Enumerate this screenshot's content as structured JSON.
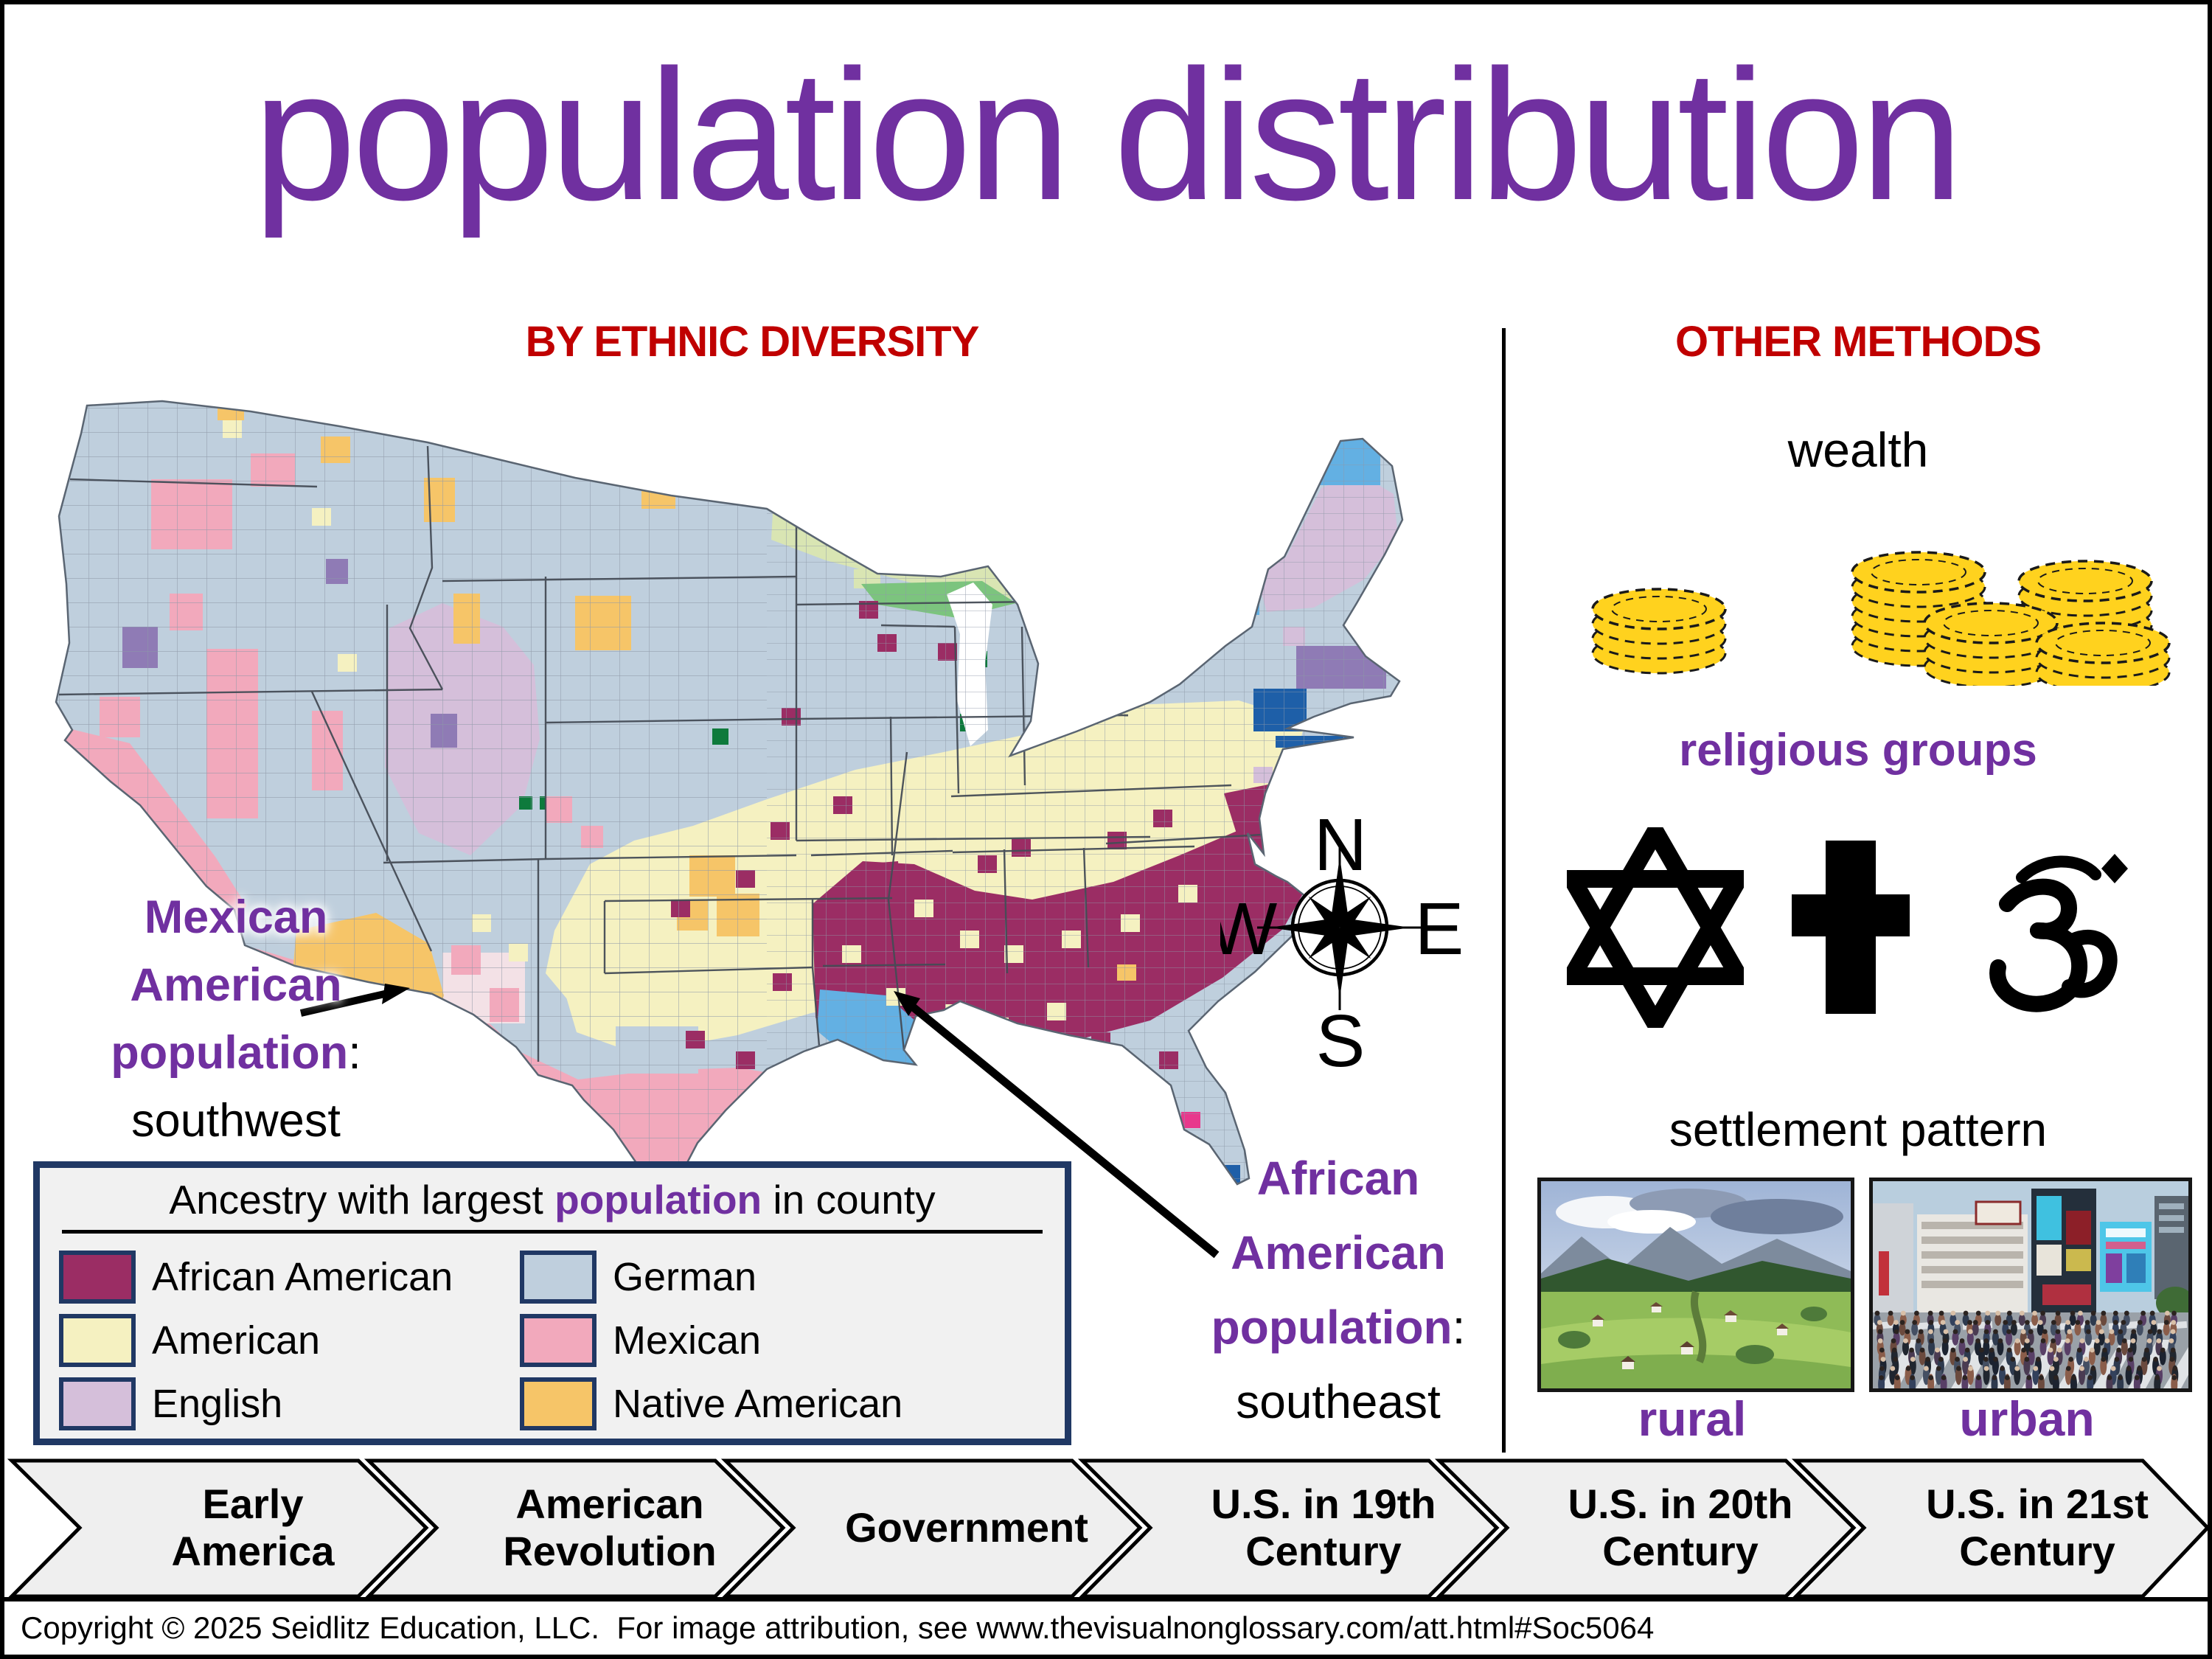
{
  "title": "population distribution",
  "sections": {
    "map": {
      "header": "BY ETHNIC DIVERSITY",
      "legend": {
        "title": {
          "prefix": "Ancestry with largest ",
          "highlight": "population",
          "suffix": " in county"
        },
        "items": [
          {
            "label": "African American",
            "color": "#9B2D64"
          },
          {
            "label": "American",
            "color": "#F5F1C1"
          },
          {
            "label": "English",
            "color": "#D5BFDA"
          },
          {
            "label": "German",
            "color": "#BFCFDD"
          },
          {
            "label": "Mexican",
            "color": "#F2A9BC"
          },
          {
            "label": "Native American",
            "color": "#F6C568"
          }
        ]
      },
      "annotations": {
        "mexican": {
          "bold1": "Mexican",
          "bold2": "American",
          "bold3": "population",
          "colon": ":",
          "normal": "southwest"
        },
        "african": {
          "bold1": "African",
          "bold2": "American",
          "bold3": "population",
          "colon": ":",
          "normal": "southeast"
        }
      },
      "compass": {
        "n": "N",
        "s": "S",
        "e": "E",
        "w": "W"
      }
    },
    "other": {
      "header": "OTHER METHODS",
      "wealth": {
        "label": "wealth",
        "icon": "gold-coin-stacks"
      },
      "religion": {
        "label": "religious groups",
        "symbols": [
          "star-of-david-icon",
          "christian-cross-icon",
          "om-icon"
        ]
      },
      "settlement": {
        "label": "settlement pattern",
        "rural_label": "rural",
        "urban_label": "urban"
      }
    }
  },
  "timeline": [
    {
      "label": "Early\nAmerica"
    },
    {
      "label": "American\nRevolution"
    },
    {
      "label": "Government"
    },
    {
      "label": "U.S. in 19th\nCentury"
    },
    {
      "label": "U.S. in 20th\nCentury"
    },
    {
      "label": "U.S. in 21st\nCentury"
    }
  ],
  "footer": {
    "copyright": "Copyright © 2025 Seidlitz Education, LLC.  For image attribution, see www.thevisualnonglossary.com/att.html#Soc5064"
  },
  "colors": {
    "title_purple": "#7030A0",
    "header_red": "#C00000",
    "label_purple": "#7030A0",
    "legend_border_navy": "#203864",
    "african_american": "#9B2D64",
    "american": "#F5F1C1",
    "english": "#D5BFDA",
    "german": "#BFCFDD",
    "mexican": "#F2A9BC",
    "native_american": "#F6C568",
    "pale_pink": "#F3E1E6",
    "french_blue": "#63B0E3",
    "dark_blue": "#1E5FA8",
    "mass_purple": "#8F7BB5",
    "pale_green": "#D9E5B3",
    "mid_green": "#7CC47E",
    "dark_green": "#0E7A3C",
    "hot_pink": "#E8388C",
    "coin_gold": "#FFD21E",
    "chevron_gray": "#EFEFEF"
  }
}
